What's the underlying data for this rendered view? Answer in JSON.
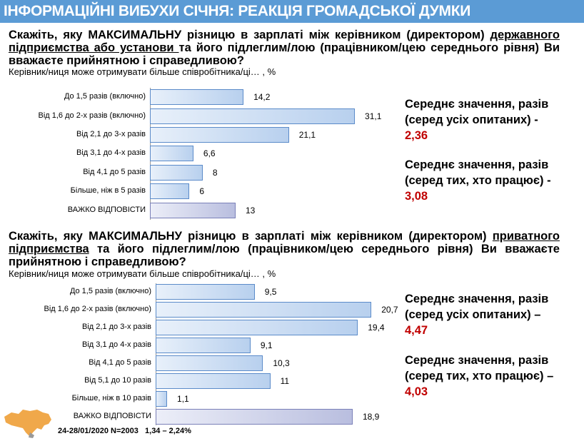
{
  "header": {
    "title": "ІНФОРМАЦІЙНІ ВИБУХИ СІЧНЯ: РЕАКЦІЯ ГРОМАДСЬКОЇ ДУМКИ"
  },
  "q1": {
    "pre": "Скажіть, яку МАКСИМАЛЬНУ різницю в зарплаті між керівником (директором) ",
    "under": "державного підприємства або установи ",
    "post": "та його підлеглим/лою (працівником/цею середнього рівня) Ви вважаєте прийнятною і справедливою?",
    "sub": "Керівник/ниця може отримувати більше співробітника/ці… , %"
  },
  "q2": {
    "pre": "Скажіть, яку МАКСИМАЛЬНУ різницю в зарплаті між керівником (директором) ",
    "under": "приватного підприємства",
    "post": " та його підлеглим/лою (працівником/цею середнього рівня) Ви вважаєте прийнятною і справедливою?",
    "sub": "Керівник/ниця може отримувати більше співробітника/ці… , %"
  },
  "stats1": [
    {
      "label": "Середнє значення, разів (серед усіх опитаних) -",
      "value": "2,36"
    },
    {
      "label": "Середнє значення, разів (серед тих, хто працює) -",
      "value": "3,08"
    }
  ],
  "stats2": [
    {
      "label": "Середнє значення, разів (серед усіх опитаних) –",
      "value": "4,47"
    },
    {
      "label": "Середнє значення, разів (серед тих, хто працює) –",
      "value": "4,03"
    }
  ],
  "footer": {
    "text": "24-28/01/2020 N=2003   1,34 – 2,24%"
  },
  "chart_data": [
    {
      "type": "bar",
      "orientation": "horizontal",
      "unit": "%",
      "categories": [
        "До 1,5 разів (включно)",
        "Від 1,6 до 2-х разів (включно)",
        "Від 2,1 до 3-х разів",
        "Від 3,1 до 4-х разів",
        "Від 4,1 до 5 разів",
        "Більше, ніж в 5 разів",
        "ВАЖКО ВІДПОВІСТИ"
      ],
      "values": [
        14.2,
        31.1,
        21.1,
        6.6,
        8,
        6,
        13
      ],
      "labels": [
        "14,2",
        "31,1",
        "21,1",
        "6,6",
        "8",
        "6",
        "13"
      ]
    },
    {
      "type": "bar",
      "orientation": "horizontal",
      "unit": "%",
      "categories": [
        "До 1,5 разів (включно)",
        "Від 1,6 до 2-х разів (включно)",
        "Від 2,1 до 3-х разів",
        "Від 3,1 до 4-х разів",
        "Від 4,1 до 5 разів",
        "Від 5,1 до 10 разів",
        "Більше, ніж в 10 разів",
        "ВАЖКО ВІДПОВІСТИ"
      ],
      "values": [
        9.5,
        20.7,
        19.4,
        9.1,
        10.3,
        11,
        1.1,
        18.9
      ],
      "labels": [
        "9,5",
        "20,7",
        "19,4",
        "9,1",
        "10,3",
        "11",
        "1,1",
        "18,9"
      ]
    }
  ]
}
